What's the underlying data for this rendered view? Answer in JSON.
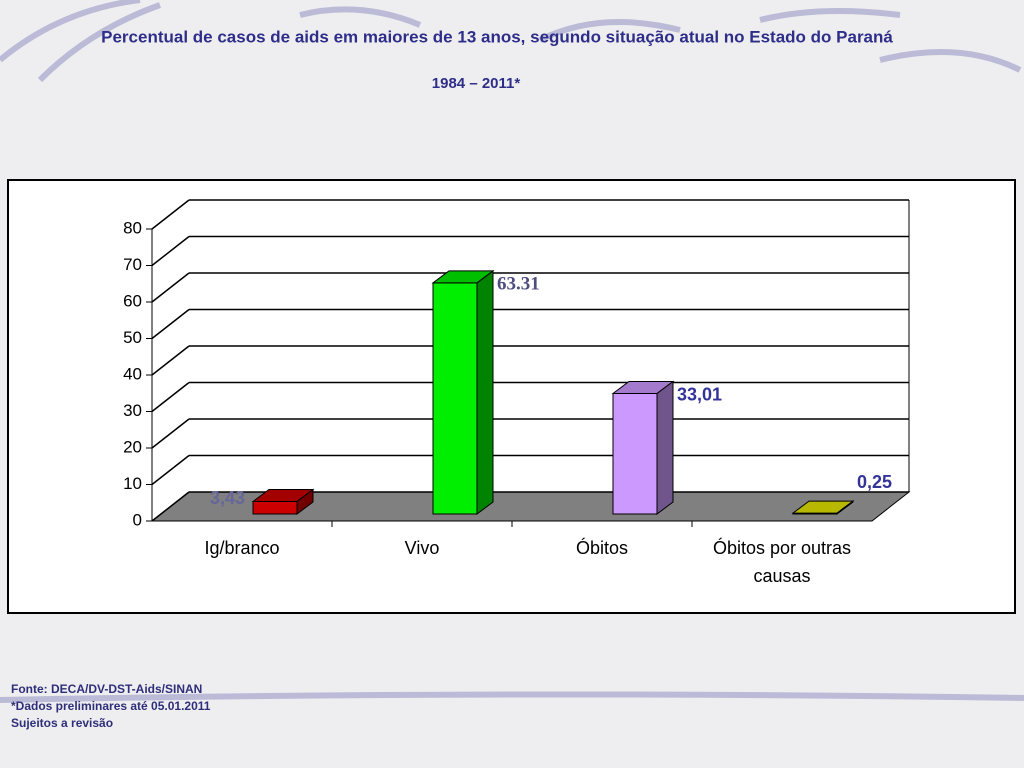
{
  "chart_data": {
    "type": "bar3d",
    "title": "Percentual de casos de aids em maiores de 13 anos, segundo situação atual no Estado do Paraná",
    "subtitle": "1984 – 2011*",
    "categories": [
      "Ig/branco",
      "Vivo",
      "Óbitos",
      "Óbitos por outras causas"
    ],
    "values": [
      3.43,
      63.31,
      33.01,
      0.25
    ],
    "value_labels": [
      "3,43",
      "63.31",
      "33,01",
      "0,25"
    ],
    "colors": [
      "#cc0000",
      "#00ee00",
      "#cc99ff",
      "#e6e600"
    ],
    "ylim": [
      0,
      80
    ],
    "yticks": [
      0,
      10,
      20,
      30,
      40,
      50,
      60,
      70,
      80
    ],
    "grid": true,
    "footnotes": [
      "Fonte: DECA/DV-DST-Aids/SINAN",
      "*Dados preliminares até 05.01.2011",
      "Sujeitos a revisão"
    ]
  }
}
